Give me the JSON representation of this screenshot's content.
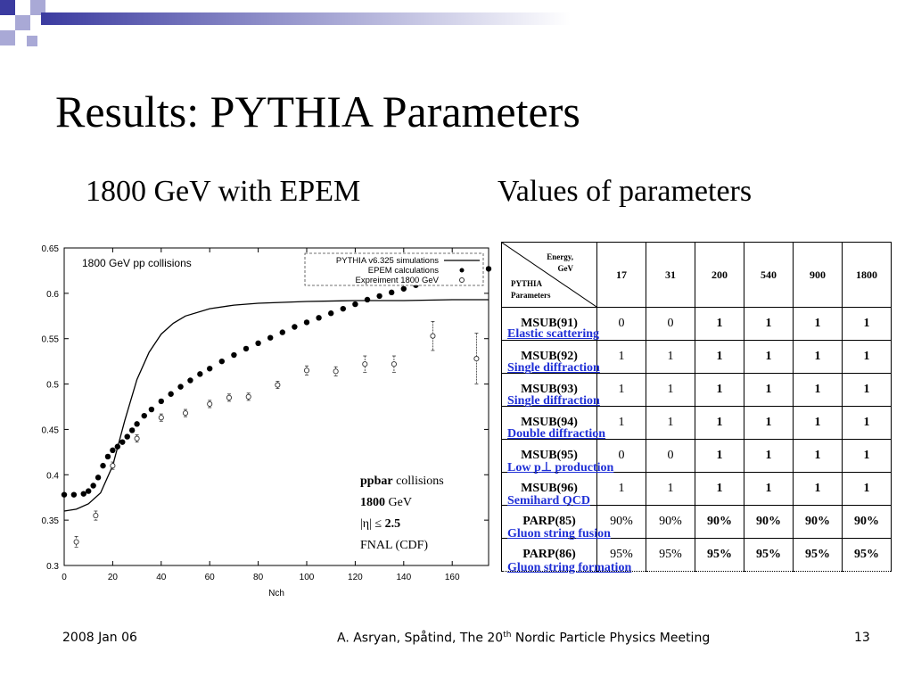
{
  "slide": {
    "title": "Results: PYTHIA Parameters",
    "left_subtitle": "1800 GeV with EPEM",
    "right_subtitle": "Values of parameters",
    "colors": {
      "deco_dark": "#3b3ba0",
      "deco_light": "#a9a9d6",
      "process_link": "#1f2fd6"
    }
  },
  "chart_data": {
    "type": "scatter",
    "title": "1800 GeV pp collisions",
    "xlabel": "Nch",
    "ylabel": "",
    "xlim": [
      0,
      175
    ],
    "ylim": [
      0.3,
      0.65
    ],
    "xticks": [
      "0",
      "20",
      "40",
      "60",
      "80",
      "100",
      "120",
      "140",
      "160"
    ],
    "yticks": [
      "0.3",
      "0.35",
      "0.4",
      "0.45",
      "0.5",
      "0.55",
      "0.6",
      "0.65"
    ],
    "legend_position": "top-right",
    "series": [
      {
        "name": "PYTHIA v6.325 simulations",
        "style": "line",
        "x": [
          0,
          5,
          10,
          15,
          20,
          25,
          30,
          35,
          40,
          45,
          50,
          60,
          70,
          80,
          90,
          100,
          120,
          140,
          160,
          175
        ],
        "y": [
          0.36,
          0.362,
          0.368,
          0.38,
          0.41,
          0.46,
          0.505,
          0.535,
          0.555,
          0.567,
          0.575,
          0.583,
          0.587,
          0.589,
          0.59,
          0.591,
          0.592,
          0.592,
          0.593,
          0.593
        ]
      },
      {
        "name": "EPEM calculations",
        "style": "dots",
        "x": [
          0,
          4,
          8,
          10,
          12,
          14,
          16,
          18,
          20,
          22,
          24,
          26,
          28,
          30,
          33,
          36,
          40,
          44,
          48,
          52,
          56,
          60,
          65,
          70,
          75,
          80,
          85,
          90,
          95,
          100,
          105,
          110,
          115,
          120,
          125,
          130,
          135,
          140,
          145,
          150,
          155,
          160,
          165,
          170,
          175
        ],
        "y": [
          0.378,
          0.378,
          0.379,
          0.382,
          0.388,
          0.397,
          0.41,
          0.42,
          0.427,
          0.431,
          0.436,
          0.442,
          0.449,
          0.456,
          0.465,
          0.472,
          0.481,
          0.489,
          0.497,
          0.504,
          0.511,
          0.517,
          0.525,
          0.532,
          0.539,
          0.545,
          0.551,
          0.557,
          0.563,
          0.568,
          0.573,
          0.578,
          0.583,
          0.588,
          0.593,
          0.597,
          0.601,
          0.605,
          0.609,
          0.613,
          0.616,
          0.619,
          0.622,
          0.625,
          0.627
        ]
      },
      {
        "name": "Expreiment 1800 GeV",
        "style": "points_with_errors",
        "x": [
          5,
          13,
          20,
          30,
          40,
          50,
          60,
          68,
          76,
          88,
          100,
          112,
          124,
          136,
          152,
          170
        ],
        "y": [
          0.326,
          0.355,
          0.41,
          0.44,
          0.463,
          0.468,
          0.478,
          0.485,
          0.486,
          0.499,
          0.515,
          0.514,
          0.522,
          0.522,
          0.553,
          0.528
        ],
        "err": [
          0.006,
          0.005,
          0.004,
          0.004,
          0.004,
          0.004,
          0.004,
          0.004,
          0.004,
          0.004,
          0.005,
          0.005,
          0.009,
          0.009,
          0.016,
          0.028
        ]
      }
    ]
  },
  "annotation": {
    "l1_bold": "ppbar",
    "l1_rest": " collisions",
    "l2_bold": "1800",
    "l2_rest": " GeV",
    "l3_pre": "|η| ≤ ",
    "l3_bold": "2.5",
    "l4": "FNAL (CDF)"
  },
  "param_table": {
    "header_energy_1": "Energy,",
    "header_energy_2": "GeV",
    "header_pythia_1": "PYTHIA",
    "header_pythia_2": "Parameters",
    "energies": [
      "17",
      "31",
      "200",
      "540",
      "900",
      "1800"
    ],
    "rows": [
      {
        "label": "MSUB(91)",
        "values": [
          "0",
          "0",
          "1",
          "1",
          "1",
          "1"
        ],
        "process": "Elastic scattering"
      },
      {
        "label": "MSUB(92)",
        "values": [
          "1",
          "1",
          "1",
          "1",
          "1",
          "1"
        ],
        "process": "Single diffraction"
      },
      {
        "label": "MSUB(93)",
        "values": [
          "1",
          "1",
          "1",
          "1",
          "1",
          "1"
        ],
        "process": "Single diffraction"
      },
      {
        "label": "MSUB(94)",
        "values": [
          "1",
          "1",
          "1",
          "1",
          "1",
          "1"
        ],
        "process": "Double diffraction"
      },
      {
        "label": "MSUB(95)",
        "values": [
          "0",
          "0",
          "1",
          "1",
          "1",
          "1"
        ],
        "process": "Low p⊥ production"
      },
      {
        "label": "MSUB(96)",
        "values": [
          "1",
          "1",
          "1",
          "1",
          "1",
          "1"
        ],
        "process": "Semihard QCD"
      },
      {
        "label": "PARP(85)",
        "values": [
          "90%",
          "90%",
          "90%",
          "90%",
          "90%",
          "90%"
        ],
        "process": "Gluon string fusion"
      },
      {
        "label": "PARP(86)",
        "values": [
          "95%",
          "95%",
          "95%",
          "95%",
          "95%",
          "95%"
        ],
        "process": "Gluon string formation"
      }
    ]
  },
  "footer": {
    "date": "2008 Jan 06",
    "citation_pre": "A. Asryan, Spåtind, The 20",
    "citation_sup": "th",
    "citation_post": " Nordic Particle Physics Meeting",
    "page": "13"
  }
}
